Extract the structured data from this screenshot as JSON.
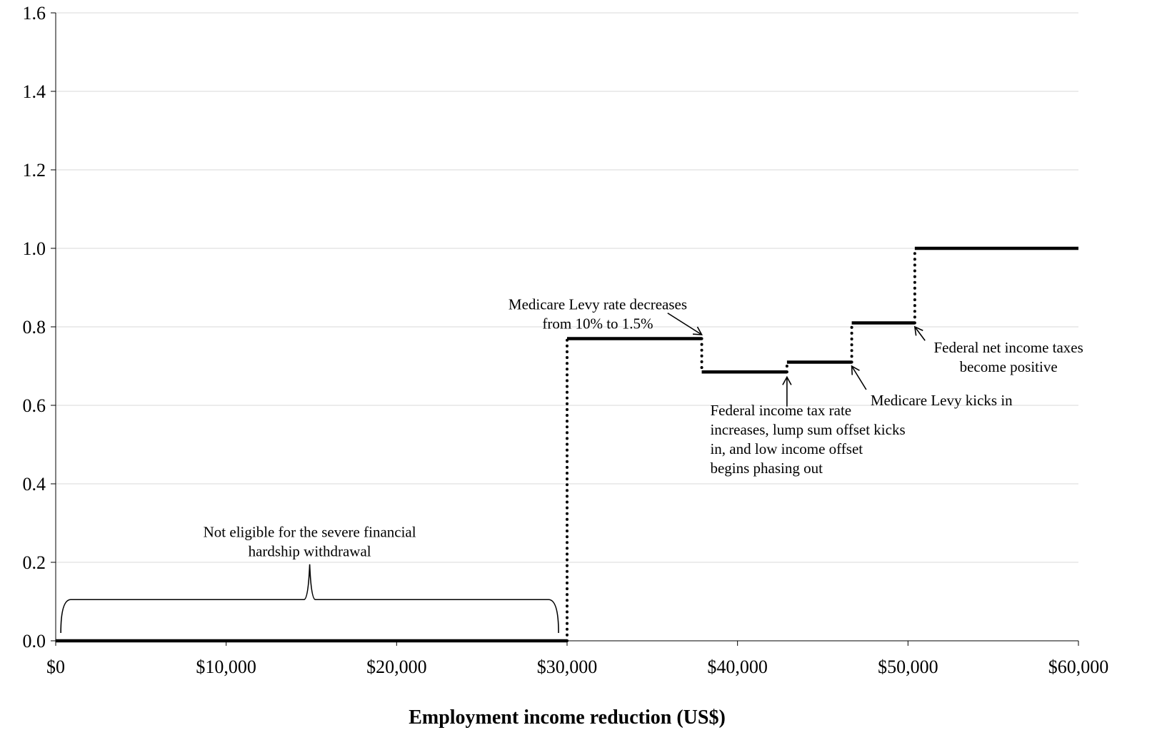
{
  "chart_data": {
    "type": "line",
    "title": "",
    "xlabel": "Employment income reduction (US$)",
    "ylabel": "",
    "xlim": [
      0,
      60000
    ],
    "ylim": [
      0,
      1.6
    ],
    "grid": true,
    "x_ticks": [
      {
        "value": 0,
        "label": "$0"
      },
      {
        "value": 10000,
        "label": "$10,000"
      },
      {
        "value": 20000,
        "label": "$20,000"
      },
      {
        "value": 30000,
        "label": "$30,000"
      },
      {
        "value": 40000,
        "label": "$40,000"
      },
      {
        "value": 50000,
        "label": "$50,000"
      },
      {
        "value": 60000,
        "label": "$60,000"
      }
    ],
    "y_ticks": [
      {
        "value": 0,
        "label": "0.0"
      },
      {
        "value": 0.2,
        "label": "0.2"
      },
      {
        "value": 0.4,
        "label": "0.4"
      },
      {
        "value": 0.6,
        "label": "0.6"
      },
      {
        "value": 0.8,
        "label": "0.8"
      },
      {
        "value": 1.0,
        "label": "1.0"
      },
      {
        "value": 1.2,
        "label": "1.2"
      },
      {
        "value": 1.4,
        "label": "1.4"
      },
      {
        "value": 1.6,
        "label": "1.6"
      }
    ],
    "steps": [
      {
        "x_start": 0,
        "x_end": 30000,
        "y": 0.0
      },
      {
        "x_start": 30000,
        "x_end": 37900,
        "y": 0.77
      },
      {
        "x_start": 37900,
        "x_end": 42900,
        "y": 0.685
      },
      {
        "x_start": 42900,
        "x_end": 46700,
        "y": 0.71
      },
      {
        "x_start": 46700,
        "x_end": 50400,
        "y": 0.81
      },
      {
        "x_start": 50400,
        "x_end": 60000,
        "y": 1.0
      }
    ],
    "brace": {
      "x_start": 300,
      "x_end": 29500,
      "y_base": 0.02,
      "y_top": 0.105,
      "y_tip": 0.195
    },
    "annotations": [
      {
        "name": "annotation-not-eligible",
        "lines": [
          "Not eligible for the severe financial",
          "hardship withdrawal"
        ],
        "text_x": 14900,
        "text_y": 0.265,
        "anchor": "middle"
      },
      {
        "name": "annotation-medicare-levy-rate",
        "lines": [
          "Medicare Levy rate decreases",
          "from 10% to 1.5%"
        ],
        "text_x": 31800,
        "text_y": 0.845,
        "anchor": "middle",
        "arrow_from": [
          35900,
          0.835
        ],
        "arrow_to": [
          37900,
          0.78
        ]
      },
      {
        "name": "annotation-federal-income-tax-rate",
        "lines": [
          "Federal income tax rate",
          "increases, lump sum offset kicks",
          "in, and low income offset",
          "begins phasing out"
        ],
        "text_x": 38400,
        "text_y": 0.575,
        "anchor": "start",
        "arrow_from": [
          42900,
          0.597
        ],
        "arrow_to": [
          42900,
          0.672
        ]
      },
      {
        "name": "annotation-medicare-levy-kicks-in",
        "lines": [
          "Medicare Levy kicks in"
        ],
        "text_x": 47800,
        "text_y": 0.6,
        "anchor": "start",
        "arrow_from": [
          47550,
          0.64
        ],
        "arrow_to": [
          46700,
          0.7
        ]
      },
      {
        "name": "annotation-federal-net-income-taxes",
        "lines": [
          "Federal net income taxes",
          "become positive"
        ],
        "text_x": 55900,
        "text_y": 0.735,
        "anchor": "middle",
        "arrow_from": [
          51000,
          0.765
        ],
        "arrow_to": [
          50400,
          0.8
        ]
      }
    ]
  }
}
